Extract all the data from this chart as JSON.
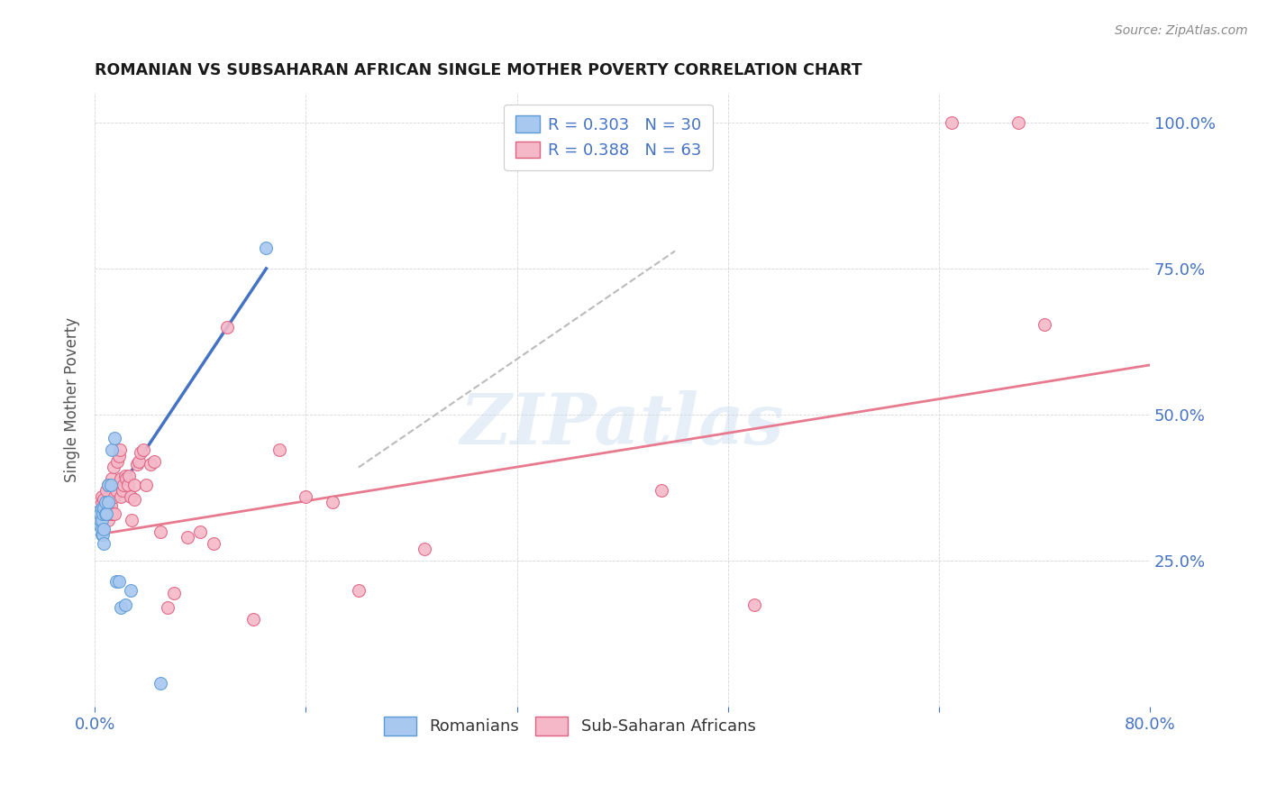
{
  "title": "ROMANIAN VS SUBSAHARAN AFRICAN SINGLE MOTHER POVERTY CORRELATION CHART",
  "source": "Source: ZipAtlas.com",
  "xlabel": "",
  "ylabel": "Single Mother Poverty",
  "xlim": [
    0.0,
    0.8
  ],
  "ylim": [
    0.0,
    1.05
  ],
  "watermark_text": "ZIPatlas",
  "legend_r1_text": "R = 0.303   N = 30",
  "legend_r2_text": "R = 0.388   N = 63",
  "color_romanian_fill": "#a8c8f0",
  "color_romanian_edge": "#5b9bd5",
  "color_african_fill": "#f4b8c8",
  "color_african_edge": "#e06080",
  "color_line_romanian": "#4472c4",
  "color_line_african": "#e87a8f",
  "color_trendline_dashed": "#bbbbbb",
  "title_color": "#1a1a1a",
  "source_color": "#888888",
  "tick_color": "#4472c4",
  "ylabel_color": "#555555",
  "romanians_x": [
    0.003,
    0.003,
    0.003,
    0.004,
    0.004,
    0.004,
    0.005,
    0.005,
    0.005,
    0.005,
    0.006,
    0.006,
    0.007,
    0.007,
    0.007,
    0.008,
    0.008,
    0.009,
    0.01,
    0.01,
    0.012,
    0.013,
    0.015,
    0.016,
    0.018,
    0.02,
    0.023,
    0.027,
    0.05,
    0.13
  ],
  "romanians_y": [
    0.325,
    0.33,
    0.335,
    0.31,
    0.32,
    0.33,
    0.295,
    0.305,
    0.32,
    0.34,
    0.295,
    0.33,
    0.28,
    0.305,
    0.34,
    0.33,
    0.35,
    0.33,
    0.35,
    0.38,
    0.38,
    0.44,
    0.46,
    0.215,
    0.215,
    0.17,
    0.175,
    0.2,
    0.04,
    0.785
  ],
  "africans_x": [
    0.003,
    0.004,
    0.005,
    0.005,
    0.005,
    0.006,
    0.007,
    0.007,
    0.008,
    0.008,
    0.009,
    0.009,
    0.01,
    0.01,
    0.01,
    0.011,
    0.012,
    0.013,
    0.013,
    0.014,
    0.015,
    0.015,
    0.016,
    0.017,
    0.018,
    0.019,
    0.02,
    0.02,
    0.021,
    0.022,
    0.023,
    0.024,
    0.025,
    0.026,
    0.027,
    0.028,
    0.03,
    0.03,
    0.032,
    0.033,
    0.035,
    0.037,
    0.039,
    0.042,
    0.045,
    0.05,
    0.055,
    0.06,
    0.07,
    0.08,
    0.09,
    0.1,
    0.12,
    0.14,
    0.16,
    0.18,
    0.2,
    0.25,
    0.43,
    0.5,
    0.65,
    0.7,
    0.72
  ],
  "africans_y": [
    0.33,
    0.325,
    0.34,
    0.35,
    0.36,
    0.34,
    0.345,
    0.355,
    0.33,
    0.345,
    0.35,
    0.37,
    0.32,
    0.345,
    0.38,
    0.33,
    0.345,
    0.33,
    0.39,
    0.41,
    0.33,
    0.36,
    0.37,
    0.42,
    0.43,
    0.44,
    0.36,
    0.39,
    0.37,
    0.38,
    0.395,
    0.39,
    0.38,
    0.395,
    0.36,
    0.32,
    0.355,
    0.38,
    0.415,
    0.42,
    0.435,
    0.44,
    0.38,
    0.415,
    0.42,
    0.3,
    0.17,
    0.195,
    0.29,
    0.3,
    0.28,
    0.65,
    0.15,
    0.44,
    0.36,
    0.35,
    0.2,
    0.27,
    0.37,
    0.175,
    1.0,
    1.0,
    0.655
  ],
  "blue_trendline_x": [
    0.003,
    0.13
  ],
  "blue_trendline_y": [
    0.32,
    0.75
  ],
  "pink_trendline_x": [
    0.002,
    0.8
  ],
  "pink_trendline_y": [
    0.295,
    0.585
  ],
  "dashed_trendline_x": [
    0.2,
    0.44
  ],
  "dashed_trendline_y": [
    0.41,
    0.78
  ]
}
